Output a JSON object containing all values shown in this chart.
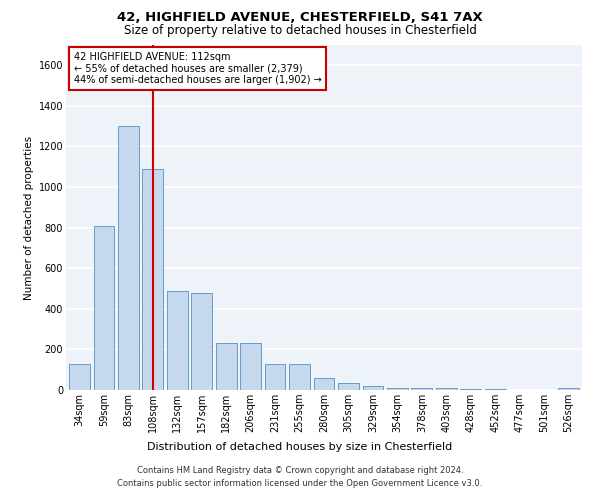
{
  "title1": "42, HIGHFIELD AVENUE, CHESTERFIELD, S41 7AX",
  "title2": "Size of property relative to detached houses in Chesterfield",
  "xlabel": "Distribution of detached houses by size in Chesterfield",
  "ylabel": "Number of detached properties",
  "bar_color": "#c5d8ed",
  "bar_edgecolor": "#5a8fc0",
  "vline_color": "#cc0000",
  "vline_x": 3,
  "annotation_text": "42 HIGHFIELD AVENUE: 112sqm\n← 55% of detached houses are smaller (2,379)\n44% of semi-detached houses are larger (1,902) →",
  "annotation_box_edgecolor": "#cc0000",
  "categories": [
    "34sqm",
    "59sqm",
    "83sqm",
    "108sqm",
    "132sqm",
    "157sqm",
    "182sqm",
    "206sqm",
    "231sqm",
    "255sqm",
    "280sqm",
    "305sqm",
    "329sqm",
    "354sqm",
    "378sqm",
    "403sqm",
    "428sqm",
    "452sqm",
    "477sqm",
    "501sqm",
    "526sqm"
  ],
  "values": [
    130,
    810,
    1300,
    1090,
    490,
    480,
    230,
    230,
    130,
    130,
    60,
    35,
    20,
    10,
    10,
    10,
    5,
    3,
    2,
    2,
    10
  ],
  "ylim": [
    0,
    1700
  ],
  "yticks": [
    0,
    200,
    400,
    600,
    800,
    1000,
    1200,
    1400,
    1600
  ],
  "background_color": "#eef2f9",
  "grid_color": "#ffffff",
  "footer": "Contains HM Land Registry data © Crown copyright and database right 2024.\nContains public sector information licensed under the Open Government Licence v3.0.",
  "title1_fontsize": 9.5,
  "title2_fontsize": 8.5,
  "xlabel_fontsize": 8,
  "ylabel_fontsize": 7.5,
  "tick_fontsize": 7,
  "footer_fontsize": 6,
  "ann_fontsize": 7
}
